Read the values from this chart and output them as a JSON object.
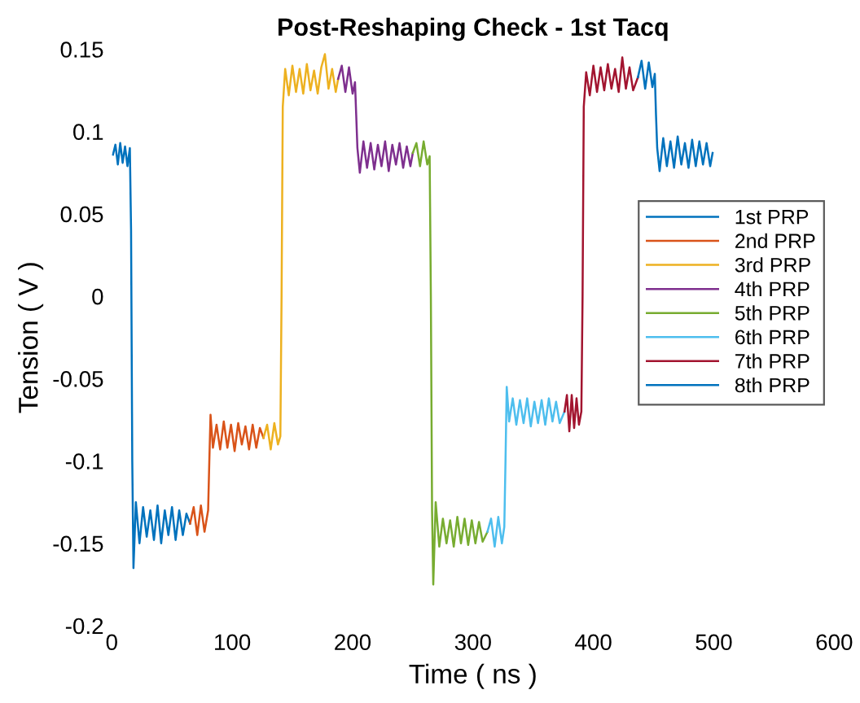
{
  "chart_data": {
    "type": "line",
    "title": "Post-Reshaping Check - 1st Tacq",
    "xlabel": "Time ( ns )",
    "ylabel": "Tension ( V )",
    "xlim": [
      0,
      600
    ],
    "xticks": [
      0,
      100,
      200,
      300,
      400,
      500,
      600
    ],
    "ylim": [
      -0.2,
      0.15
    ],
    "yticks": [
      -0.2,
      -0.15,
      -0.1,
      -0.05,
      0,
      0.05,
      0.1,
      0.15
    ],
    "grid": false,
    "legend": "right",
    "marker": "none",
    "line_style": "solid",
    "series": [
      {
        "name": "1st PRP",
        "color": "#0072bd",
        "x": [
          1,
          3,
          5,
          7,
          9,
          11,
          13,
          15,
          16,
          17,
          18,
          20,
          23,
          26,
          29,
          32,
          35,
          38,
          41,
          44,
          47,
          50,
          53,
          56,
          59,
          62,
          65
        ],
        "values": [
          0.086,
          0.092,
          0.08,
          0.093,
          0.081,
          0.091,
          0.079,
          0.09,
          0.04,
          -0.1,
          -0.165,
          -0.125,
          -0.15,
          -0.128,
          -0.146,
          -0.13,
          -0.148,
          -0.127,
          -0.15,
          -0.13,
          -0.145,
          -0.128,
          -0.148,
          -0.13,
          -0.145,
          -0.132,
          -0.138
        ]
      },
      {
        "name": "2nd PRP",
        "color": "#d95319",
        "x": [
          65,
          68,
          71,
          74,
          77,
          80,
          81,
          82,
          84,
          87,
          90,
          93,
          96,
          99,
          102,
          105,
          108,
          111,
          114,
          117,
          120,
          123,
          126
        ],
        "values": [
          -0.138,
          -0.128,
          -0.145,
          -0.127,
          -0.143,
          -0.13,
          -0.1,
          -0.072,
          -0.092,
          -0.078,
          -0.093,
          -0.076,
          -0.092,
          -0.078,
          -0.094,
          -0.077,
          -0.09,
          -0.079,
          -0.093,
          -0.078,
          -0.092,
          -0.08,
          -0.086
        ]
      },
      {
        "name": "3rd PRP",
        "color": "#edb120",
        "x": [
          126,
          129,
          132,
          135,
          138,
          140,
          141,
          142,
          144,
          147,
          150,
          153,
          156,
          159,
          162,
          165,
          168,
          171,
          174,
          177,
          180,
          183,
          186,
          188
        ],
        "values": [
          -0.086,
          -0.078,
          -0.093,
          -0.077,
          -0.09,
          -0.085,
          0.0,
          0.115,
          0.138,
          0.122,
          0.14,
          0.124,
          0.138,
          0.123,
          0.141,
          0.125,
          0.137,
          0.123,
          0.139,
          0.147,
          0.126,
          0.138,
          0.124,
          0.132
        ]
      },
      {
        "name": "4th PRP",
        "color": "#7e2f8e",
        "x": [
          188,
          191,
          194,
          197,
          200,
          202,
          203,
          204,
          206,
          209,
          212,
          215,
          218,
          221,
          224,
          227,
          230,
          233,
          236,
          239,
          242,
          245,
          248,
          250
        ],
        "values": [
          0.132,
          0.14,
          0.124,
          0.139,
          0.123,
          0.13,
          0.11,
          0.09,
          0.075,
          0.094,
          0.078,
          0.093,
          0.077,
          0.092,
          0.079,
          0.094,
          0.076,
          0.092,
          0.08,
          0.093,
          0.078,
          0.091,
          0.079,
          0.087
        ]
      },
      {
        "name": "5th PRP",
        "color": "#77ac30",
        "x": [
          250,
          253,
          256,
          259,
          262,
          264,
          265,
          266,
          267,
          269,
          272,
          275,
          278,
          281,
          284,
          287,
          290,
          293,
          296,
          299,
          302,
          305,
          308,
          312
        ],
        "values": [
          0.087,
          0.093,
          0.079,
          0.094,
          0.08,
          0.085,
          0.0,
          -0.13,
          -0.175,
          -0.125,
          -0.152,
          -0.135,
          -0.15,
          -0.136,
          -0.152,
          -0.134,
          -0.15,
          -0.135,
          -0.151,
          -0.136,
          -0.15,
          -0.137,
          -0.149,
          -0.143
        ]
      },
      {
        "name": "6th PRP",
        "color": "#4dbeee",
        "x": [
          312,
          315,
          318,
          321,
          324,
          326,
          327,
          328,
          330,
          333,
          336,
          339,
          342,
          345,
          348,
          351,
          354,
          357,
          360,
          363,
          366,
          369,
          372,
          376
        ],
        "values": [
          -0.143,
          -0.135,
          -0.152,
          -0.134,
          -0.15,
          -0.14,
          -0.1,
          -0.055,
          -0.076,
          -0.062,
          -0.078,
          -0.063,
          -0.077,
          -0.062,
          -0.079,
          -0.064,
          -0.077,
          -0.063,
          -0.078,
          -0.062,
          -0.076,
          -0.064,
          -0.077,
          -0.07
        ]
      },
      {
        "name": "7th PRP",
        "color": "#a2142f",
        "x": [
          376,
          378,
          380,
          382,
          384,
          386,
          388,
          390,
          391,
          392,
          394,
          397,
          400,
          403,
          406,
          409,
          412,
          415,
          418,
          421,
          424,
          427,
          430,
          433,
          437
        ],
        "values": [
          -0.07,
          -0.06,
          -0.082,
          -0.06,
          -0.08,
          -0.062,
          -0.078,
          -0.07,
          0.0,
          0.115,
          0.136,
          0.122,
          0.14,
          0.124,
          0.139,
          0.125,
          0.141,
          0.126,
          0.138,
          0.124,
          0.145,
          0.126,
          0.139,
          0.125,
          0.133
        ]
      },
      {
        "name": "8th PRP",
        "color": "#0072bd",
        "x": [
          437,
          440,
          443,
          446,
          449,
          451,
          452,
          453,
          455,
          458,
          461,
          464,
          467,
          470,
          473,
          476,
          479,
          482,
          485,
          488,
          491,
          494,
          497,
          499
        ],
        "values": [
          0.133,
          0.143,
          0.126,
          0.142,
          0.127,
          0.135,
          0.11,
          0.09,
          0.076,
          0.096,
          0.079,
          0.094,
          0.078,
          0.097,
          0.08,
          0.093,
          0.078,
          0.095,
          0.079,
          0.094,
          0.08,
          0.093,
          0.079,
          0.087
        ]
      }
    ]
  }
}
